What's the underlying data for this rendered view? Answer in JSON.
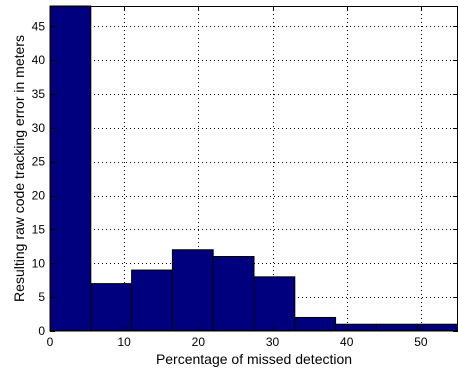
{
  "chart_data": {
    "type": "bar",
    "style": "histogram",
    "title": "",
    "xlabel": "Percentage of missed detection",
    "ylabel": "Resulting raw code tracking error in meters",
    "xlim": [
      0,
      55
    ],
    "ylim": [
      0,
      48
    ],
    "x_ticks": [
      0,
      10,
      20,
      30,
      40,
      50
    ],
    "y_ticks": [
      0,
      5,
      10,
      15,
      20,
      25,
      30,
      35,
      40,
      45
    ],
    "grid": true,
    "bar_color": "#00007f",
    "bins": [
      {
        "x0": 0.0,
        "x1": 5.5,
        "value": 48
      },
      {
        "x0": 5.5,
        "x1": 11.0,
        "value": 7
      },
      {
        "x0": 11.0,
        "x1": 16.5,
        "value": 9
      },
      {
        "x0": 16.5,
        "x1": 22.0,
        "value": 12
      },
      {
        "x0": 22.0,
        "x1": 27.5,
        "value": 11
      },
      {
        "x0": 27.5,
        "x1": 33.0,
        "value": 8
      },
      {
        "x0": 33.0,
        "x1": 38.5,
        "value": 2
      },
      {
        "x0": 38.5,
        "x1": 44.0,
        "value": 1
      },
      {
        "x0": 44.0,
        "x1": 49.5,
        "value": 1
      },
      {
        "x0": 49.5,
        "x1": 55.0,
        "value": 1
      }
    ]
  }
}
